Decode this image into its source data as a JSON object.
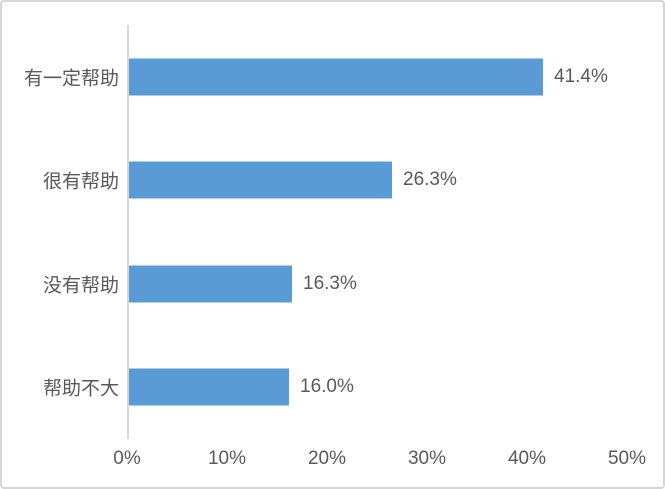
{
  "chart_data": {
    "type": "bar",
    "orientation": "horizontal",
    "title": "",
    "categories": [
      "有一定帮助",
      "很有帮助",
      "没有帮助",
      "帮助不大"
    ],
    "values": [
      41.4,
      26.3,
      16.3,
      16.0
    ],
    "data_labels": [
      "41.4%",
      "26.3%",
      "16.3%",
      "16.0%"
    ],
    "x_ticks": [
      "0%",
      "10%",
      "20%",
      "30%",
      "40%",
      "50%"
    ],
    "x_tick_values": [
      0,
      10,
      20,
      30,
      40,
      50
    ],
    "xlim": [
      0,
      50
    ],
    "gridlines": false,
    "legend": "none",
    "bar_color": "#5B9BD5",
    "text_color": "#595959",
    "axis_line_color": "#D6D6D6",
    "frame_border_color": "#D6D6D6",
    "background_color": "#FFFFFF"
  }
}
